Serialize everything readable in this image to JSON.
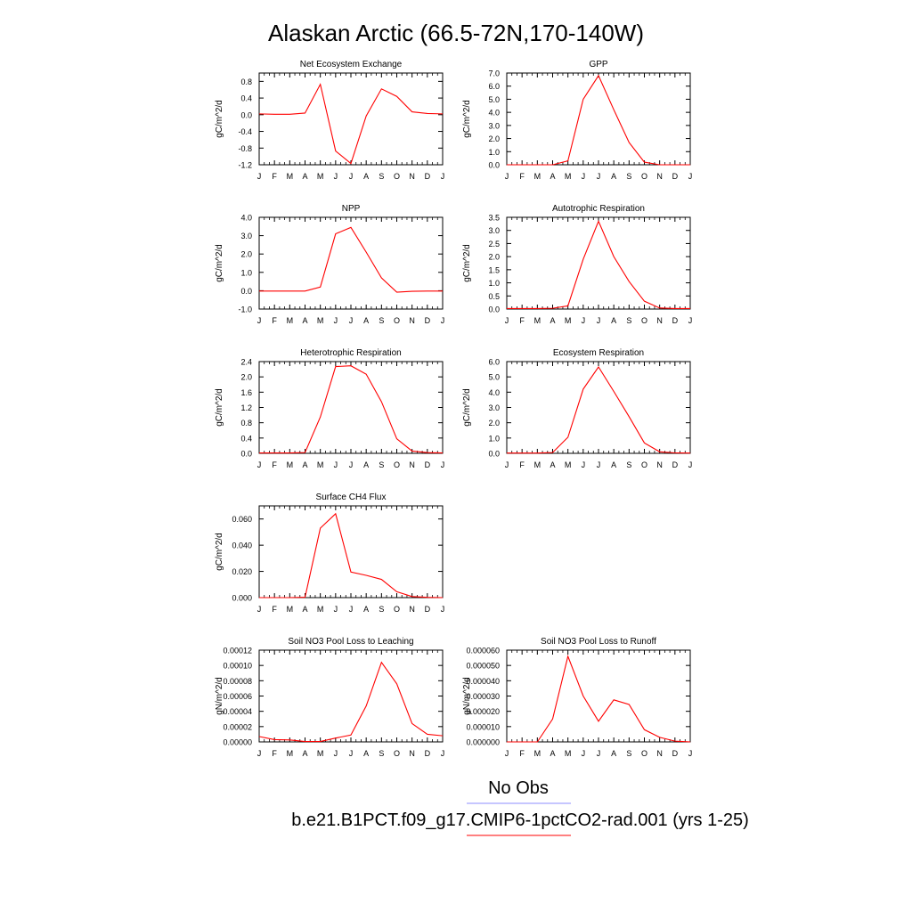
{
  "title": "Alaskan Arctic (66.5-72N,170-140W)",
  "legend": {
    "obs_label": "No Obs",
    "obs_color": "#8c8cff",
    "model_label": "b.e21.B1PCT.f09_g17.CMIP6-1pctCO2-rad.001 (yrs 1-25)",
    "model_color": "#ff0000"
  },
  "months": [
    "J",
    "F",
    "M",
    "A",
    "M",
    "J",
    "J",
    "A",
    "S",
    "O",
    "N",
    "D",
    "J"
  ],
  "chart_data": [
    {
      "type": "line",
      "title": "Net Ecosystem Exchange",
      "ylabel": "gC/m^2/d",
      "ylim": [
        -1.2,
        1.0
      ],
      "yticks": [
        "-1.2",
        "-0.8",
        "-0.4",
        "0.0",
        "0.4",
        "0.8"
      ],
      "ytick_values": [
        -1.2,
        -0.8,
        -0.4,
        0.0,
        0.4,
        0.8
      ],
      "series": [
        {
          "color": "#ff0000",
          "values": [
            0.02,
            0.01,
            0.01,
            0.04,
            0.73,
            -0.87,
            -1.17,
            -0.03,
            0.62,
            0.44,
            0.07,
            0.03,
            0.02
          ]
        }
      ]
    },
    {
      "type": "line",
      "title": "GPP",
      "ylabel": "gC/m^2/d",
      "ylim": [
        0,
        7
      ],
      "yticks": [
        "0.0",
        "1.0",
        "2.0",
        "3.0",
        "4.0",
        "5.0",
        "6.0",
        "7.0"
      ],
      "ytick_values": [
        0,
        1,
        2,
        3,
        4,
        5,
        6,
        7
      ],
      "series": [
        {
          "color": "#ff0000",
          "values": [
            0.0,
            0.0,
            0.0,
            0.0,
            0.3,
            5.0,
            6.8,
            4.2,
            1.7,
            0.2,
            0.0,
            0.0,
            0.0
          ]
        }
      ]
    },
    {
      "type": "line",
      "title": "NPP",
      "ylabel": "gC/m^2/d",
      "ylim": [
        -1.0,
        4.0
      ],
      "yticks": [
        "-1.0",
        "0.0",
        "1.0",
        "2.0",
        "3.0",
        "4.0"
      ],
      "ytick_values": [
        -1,
        0,
        1,
        2,
        3,
        4
      ],
      "series": [
        {
          "color": "#ff0000",
          "values": [
            -0.02,
            -0.02,
            -0.02,
            -0.02,
            0.2,
            3.1,
            3.45,
            2.1,
            0.7,
            -0.08,
            -0.03,
            -0.02,
            -0.02
          ]
        }
      ]
    },
    {
      "type": "line",
      "title": "Autotrophic Respiration",
      "ylabel": "gC/m^2/d",
      "ylim": [
        0,
        3.5
      ],
      "yticks": [
        "0.0",
        "0.5",
        "1.0",
        "1.5",
        "2.0",
        "2.5",
        "3.0",
        "3.5"
      ],
      "ytick_values": [
        0,
        0.5,
        1,
        1.5,
        2,
        2.5,
        3,
        3.5
      ],
      "series": [
        {
          "color": "#ff0000",
          "values": [
            0.02,
            0.02,
            0.02,
            0.03,
            0.12,
            1.9,
            3.35,
            2.0,
            1.05,
            0.3,
            0.04,
            0.02,
            0.02
          ]
        }
      ]
    },
    {
      "type": "line",
      "title": "Heterotrophic Respiration",
      "ylabel": "gC/m^2/d",
      "ylim": [
        0,
        2.4
      ],
      "yticks": [
        "0.0",
        "0.4",
        "0.8",
        "1.2",
        "1.6",
        "2.0",
        "2.4"
      ],
      "ytick_values": [
        0,
        0.4,
        0.8,
        1.2,
        1.6,
        2.0,
        2.4
      ],
      "series": [
        {
          "color": "#ff0000",
          "values": [
            0.01,
            0.01,
            0.01,
            0.02,
            0.95,
            2.27,
            2.29,
            2.07,
            1.35,
            0.38,
            0.06,
            0.02,
            0.01
          ]
        }
      ]
    },
    {
      "type": "line",
      "title": "Ecosystem Respiration",
      "ylabel": "gC/m^2/d",
      "ylim": [
        0,
        6
      ],
      "yticks": [
        "0.0",
        "1.0",
        "2.0",
        "3.0",
        "4.0",
        "5.0",
        "6.0"
      ],
      "ytick_values": [
        0,
        1,
        2,
        3,
        4,
        5,
        6
      ],
      "series": [
        {
          "color": "#ff0000",
          "values": [
            0.02,
            0.02,
            0.02,
            0.05,
            1.05,
            4.2,
            5.65,
            4.05,
            2.4,
            0.68,
            0.1,
            0.03,
            0.02
          ]
        }
      ]
    },
    {
      "type": "line",
      "title": "Surface CH4 Flux",
      "ylabel": "gC/m^2/d",
      "ylim": [
        0,
        0.07
      ],
      "yticks": [
        "0.000",
        "0.020",
        "0.040",
        "0.060"
      ],
      "ytick_values": [
        0,
        0.02,
        0.04,
        0.06
      ],
      "series": [
        {
          "color": "#ff0000",
          "values": [
            0.0,
            0.0,
            0.0,
            0.0003,
            0.053,
            0.064,
            0.0195,
            0.017,
            0.0139,
            0.0045,
            0.0008,
            0.0002,
            0.0
          ]
        }
      ]
    },
    null,
    {
      "type": "line",
      "title": "Soil NO3 Pool Loss to Leaching",
      "ylabel": "gN/m^2/d",
      "ylim": [
        0,
        0.00012
      ],
      "yticks": [
        "0.00000",
        "0.00002",
        "0.00004",
        "0.00006",
        "0.00008",
        "0.00010",
        "0.00012"
      ],
      "ytick_values": [
        0,
        2e-05,
        4e-05,
        6e-05,
        8e-05,
        0.0001,
        0.00012
      ],
      "series": [
        {
          "color": "#ff0000",
          "values": [
            7e-06,
            3e-06,
            2.5e-06,
            5e-07,
            5e-07,
            5e-06,
            9e-06,
            4.7e-05,
            0.000104,
            7.6e-05,
            2.4e-05,
            1e-05,
            8e-06
          ]
        }
      ]
    },
    {
      "type": "line",
      "title": "Soil NO3 Pool Loss to Runoff",
      "ylabel": "gN/m^2/d",
      "ylim": [
        0,
        6e-05
      ],
      "yticks": [
        "0.000000",
        "0.000010",
        "0.000020",
        "0.000030",
        "0.000040",
        "0.000050",
        "0.000060"
      ],
      "ytick_values": [
        0,
        1e-05,
        2e-05,
        3e-05,
        4e-05,
        5e-05,
        6e-05
      ],
      "series": [
        {
          "color": "#ff0000",
          "values": [
            0.0,
            0.0,
            0.0,
            1.5e-05,
            5.6e-05,
            3e-05,
            1.35e-05,
            2.75e-05,
            2.45e-05,
            8e-06,
            3e-06,
            5e-07,
            0.0
          ]
        }
      ]
    }
  ]
}
